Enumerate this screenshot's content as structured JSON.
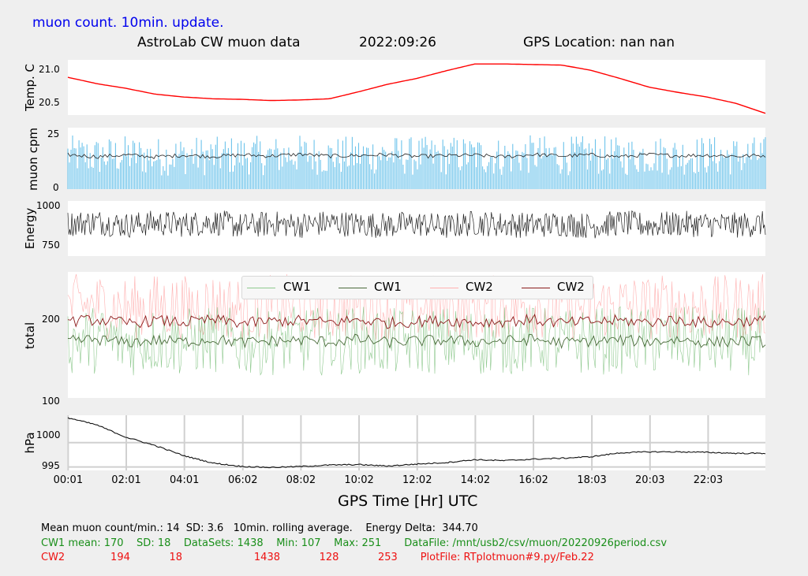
{
  "header": {
    "subtitle": "muon count.  10min. update.",
    "title_left": "AstroLab CW muon data",
    "date": "2022:09:26",
    "gps": "GPS Location: nan   nan"
  },
  "colors": {
    "temp": "#ff0000",
    "muon_bars": "#6cc3ea",
    "muon_avg": "#222222",
    "energy": "#222222",
    "cw1_raw": "#8fc98f",
    "cw1_avg": "#4a6b3a",
    "cw2_raw": "#ffb0b0",
    "cw2_avg": "#8b1a1a",
    "pressure": "#111111",
    "panel_bg": "#ffffff",
    "grid": "#d0d0d0"
  },
  "chart_data": [
    {
      "type": "line",
      "ylabel": "Temp. C",
      "yticks": [
        "21.0",
        "20.5"
      ],
      "ylim": [
        20.32,
        21.27
      ],
      "x": [
        0,
        1,
        2,
        3,
        4,
        5,
        6,
        7,
        8,
        9,
        10,
        11,
        12,
        13,
        14,
        15,
        16,
        17,
        18,
        19,
        20,
        21,
        22,
        23,
        24
      ],
      "series": [
        {
          "values": [
            20.97,
            20.86,
            20.78,
            20.68,
            20.63,
            20.6,
            20.59,
            20.57,
            20.58,
            20.6,
            20.72,
            20.85,
            20.95,
            21.08,
            21.2,
            21.2,
            21.19,
            21.18,
            21.09,
            20.95,
            20.8,
            20.71,
            20.63,
            20.52,
            20.35
          ]
        }
      ]
    },
    {
      "type": "bar",
      "ylabel": "muon cpm",
      "yticks": [
        "25",
        "0"
      ],
      "ylim": [
        0,
        25
      ],
      "x": [
        0,
        1,
        2,
        3,
        4,
        5,
        6,
        7,
        8,
        9,
        10,
        11,
        12,
        13,
        14,
        15,
        16,
        17,
        18,
        19,
        20,
        21,
        22,
        23,
        24
      ],
      "series": [
        {
          "values": [
            14,
            13.2,
            13.9,
            13.1,
            13.8,
            13.3,
            13.9,
            13.5,
            14.2,
            13.4,
            13.7,
            14.0,
            13.3,
            13.6,
            13.8,
            13.1,
            14.1,
            13.5,
            13.9,
            13.2,
            14.0,
            13.6,
            13.8,
            13.4,
            13.7
          ]
        }
      ]
    },
    {
      "type": "line",
      "ylabel": "Energy",
      "yticks": [
        "1000",
        "750"
      ],
      "ylim": [
        680,
        1020
      ],
      "x": [
        0,
        1,
        2,
        3,
        4,
        5,
        6,
        7,
        8,
        9,
        10,
        11,
        12,
        13,
        14,
        15,
        16,
        17,
        18,
        19,
        20,
        21,
        22,
        23,
        24
      ],
      "series": [
        {
          "values": [
            880,
            890,
            870,
            885,
            875,
            890,
            865,
            880,
            870,
            885,
            875,
            870,
            880,
            860,
            885,
            875,
            870,
            880,
            865,
            885,
            870,
            880,
            875,
            870,
            880
          ]
        }
      ]
    },
    {
      "type": "line",
      "ylabel": "total",
      "yticks": [
        "200",
        "100"
      ],
      "ylim": [
        100,
        255
      ],
      "legend": [
        "CW1",
        "CW1",
        "CW2",
        "CW2"
      ],
      "legend_placement": "top-center",
      "x": [
        0,
        1,
        2,
        3,
        4,
        5,
        6,
        7,
        8,
        9,
        10,
        11,
        12,
        13,
        14,
        15,
        16,
        17,
        18,
        19,
        20,
        21,
        22,
        23,
        24
      ],
      "series": [
        {
          "values": [
            170,
            172,
            168,
            171,
            169,
            172,
            168,
            170,
            171,
            169,
            172,
            168,
            170,
            171,
            169,
            170,
            172,
            168,
            170,
            171,
            169,
            172,
            168,
            170,
            169
          ]
        },
        {
          "values": [
            194,
            196,
            192,
            195,
            193,
            196,
            192,
            194,
            195,
            193,
            196,
            192,
            194,
            195,
            193,
            194,
            196,
            192,
            194,
            195,
            193,
            196,
            192,
            194,
            195
          ]
        }
      ]
    },
    {
      "type": "line",
      "ylabel": "hPa",
      "yticks": [
        "1000",
        "995"
      ],
      "ylim": [
        994.3,
        1005.6
      ],
      "grid": true,
      "x": [
        0,
        1,
        2,
        3,
        4,
        5,
        6,
        7,
        8,
        9,
        10,
        11,
        12,
        13,
        14,
        15,
        16,
        17,
        18,
        19,
        20,
        21,
        22,
        23,
        24
      ],
      "series": [
        {
          "values": [
            1005.1,
            1003.6,
            1001.1,
            999.4,
            997.3,
            995.8,
            995.1,
            994.9,
            995.1,
            995.4,
            995.5,
            995.2,
            995.6,
            995.9,
            996.5,
            996.3,
            996.6,
            996.8,
            997.1,
            997.9,
            998.1,
            998.1,
            998,
            997.8,
            997.8
          ]
        }
      ]
    }
  ],
  "xaxis": {
    "title": "GPS Time  [Hr] UTC",
    "ticks": [
      "00:01",
      "02:01",
      "04:01",
      "06:02",
      "08:02",
      "10:02",
      "12:02",
      "14:02",
      "16:02",
      "18:03",
      "20:03",
      "22:03"
    ]
  },
  "stats": {
    "line1": "Mean muon count/min.: 14  SD: 3.6   10min. rolling average.    Energy Delta:  344.70",
    "line2": "CW1 mean: 170    SD: 18    DataSets: 1438    Min: 107    Max: 251       DataFile: /mnt/usb2/csv/muon/20220926period.csv",
    "line3": "CW2              194            18                      1438            128            253       PlotFile: RTplotmuon#9.py/Feb.22"
  }
}
